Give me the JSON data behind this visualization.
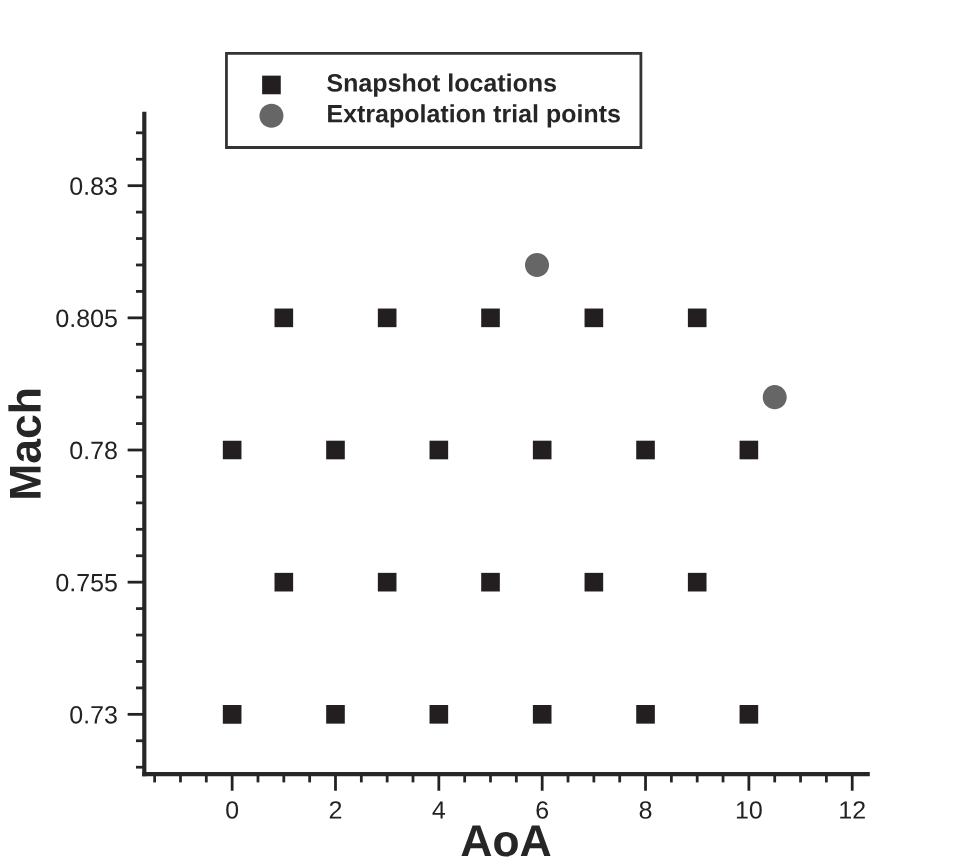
{
  "chart_data": {
    "type": "scatter",
    "xlabel": "AoA",
    "ylabel": "Mach",
    "xlim": [
      -1.7,
      12.3
    ],
    "xticks": [
      0,
      2,
      4,
      6,
      8,
      10,
      12
    ],
    "ylim": [
      0.7187,
      0.8436
    ],
    "yticks": [
      0.73,
      0.755,
      0.78,
      0.805,
      0.83
    ],
    "grid": false,
    "legend": "top",
    "series": [
      {
        "name": "Snapshot locations",
        "color": "#231f20",
        "marker": "square",
        "x": [
          0,
          2,
          4,
          6,
          8,
          10,
          1,
          3,
          5,
          7,
          9,
          0,
          2,
          4,
          6,
          8,
          10,
          1,
          3,
          5,
          7,
          9
        ],
        "values": [
          0.73,
          0.73,
          0.73,
          0.73,
          0.73,
          0.73,
          0.755,
          0.755,
          0.755,
          0.755,
          0.755,
          0.78,
          0.78,
          0.78,
          0.78,
          0.78,
          0.78,
          0.805,
          0.805,
          0.805,
          0.805,
          0.805
        ]
      },
      {
        "name": "Extrapolation trial points",
        "color": "#666666",
        "marker": "circle",
        "x": [
          5.9,
          10.5
        ],
        "values": [
          0.815,
          0.79
        ]
      }
    ]
  }
}
